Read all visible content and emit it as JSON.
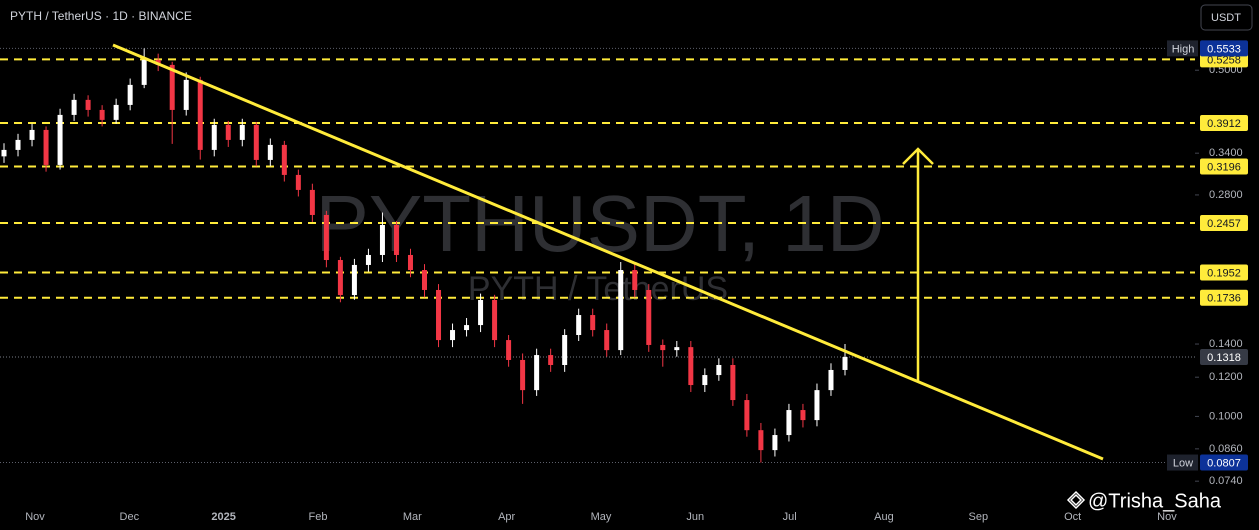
{
  "header": "PYTH / TetherUS · 1D · BINANCE",
  "currency_button": "USDT",
  "watermark": {
    "symbol": "PYTHUSDT, 1D",
    "name": "PYTH / TetherUS"
  },
  "author": "@Trisha_Saha",
  "chart_data": {
    "type": "candlestick",
    "log_scale": true,
    "up_color": "#ffffff",
    "down_color": "#f23645",
    "level_color": "#ffeb3b",
    "ylim": [
      0.0678,
      0.693
    ],
    "yticks": [
      {
        "value": 0.5,
        "label": "0.5000"
      },
      {
        "value": 0.34,
        "label": "0.3400"
      },
      {
        "value": 0.28,
        "label": "0.2800"
      },
      {
        "value": 0.14,
        "label": "0.1400"
      },
      {
        "value": 0.12,
        "label": "0.1200"
      },
      {
        "value": 0.1,
        "label": "0.1000"
      },
      {
        "value": 0.086,
        "label": "0.0860"
      },
      {
        "value": 0.074,
        "label": "0.0740"
      }
    ],
    "x_labels": [
      "Nov",
      "Dec",
      "2025",
      "Feb",
      "Mar",
      "Apr",
      "May",
      "Jun",
      "Jul",
      "Aug",
      "Sep",
      "Oct",
      "Nov"
    ],
    "levels": [
      0.5258,
      0.3912,
      0.3196,
      0.2457,
      0.1952,
      0.1736
    ],
    "session_high": {
      "label": "High",
      "value": 0.5533
    },
    "session_low": {
      "label": "Low",
      "value": 0.0807
    },
    "last": 0.1318,
    "open": [
      0.335,
      0.3452,
      0.3616,
      0.3788,
      0.3219,
      0.4062,
      0.4356,
      0.4157,
      0.3969,
      0.4255,
      0.467,
      0.5246,
      0.5125,
      0.4157,
      0.478,
      0.3452,
      0.3877,
      0.3616,
      0.3877,
      0.3295,
      0.3533,
      0.3073,
      0.2866,
      0.2551,
      0.2069,
      0.1758,
      0.2022,
      0.2118,
      0.2435,
      0.2118,
      0.1975,
      0.18,
      0.1426,
      0.1494,
      0.1529,
      0.1718,
      0.1426,
      0.13,
      0.113,
      0.133,
      0.127,
      0.146,
      0.1602,
      0.1494,
      0.1361,
      0.1975,
      0.18,
      0.1394,
      0.1361,
      0.138,
      0.1157,
      0.1212,
      0.127,
      0.1079,
      0.0938,
      0.0855,
      0.0917,
      0.103,
      0.0983,
      0.113,
      0.1241
    ],
    "high": [
      0.356,
      0.372,
      0.39,
      0.385,
      0.418,
      0.448,
      0.445,
      0.425,
      0.438,
      0.481,
      0.5533,
      0.54,
      0.52,
      0.495,
      0.485,
      0.399,
      0.395,
      0.399,
      0.393,
      0.364,
      0.36,
      0.315,
      0.295,
      0.26,
      0.21,
      0.208,
      0.218,
      0.258,
      0.248,
      0.218,
      0.203,
      0.185,
      0.154,
      0.158,
      0.177,
      0.176,
      0.146,
      0.134,
      0.137,
      0.137,
      0.15,
      0.165,
      0.165,
      0.154,
      0.205,
      0.203,
      0.185,
      0.143,
      0.142,
      0.142,
      0.125,
      0.131,
      0.131,
      0.111,
      0.097,
      0.0945,
      0.106,
      0.106,
      0.1165,
      0.128,
      0.14
    ],
    "low": [
      0.325,
      0.335,
      0.351,
      0.312,
      0.315,
      0.395,
      0.403,
      0.385,
      0.39,
      0.415,
      0.46,
      0.498,
      0.355,
      0.405,
      0.33,
      0.335,
      0.35,
      0.351,
      0.32,
      0.32,
      0.298,
      0.278,
      0.247,
      0.2,
      0.17,
      0.172,
      0.196,
      0.205,
      0.205,
      0.191,
      0.174,
      0.138,
      0.138,
      0.145,
      0.148,
      0.138,
      0.126,
      0.106,
      0.11,
      0.123,
      0.123,
      0.142,
      0.145,
      0.132,
      0.133,
      0.174,
      0.135,
      0.126,
      0.132,
      0.112,
      0.112,
      0.118,
      0.105,
      0.091,
      0.0807,
      0.083,
      0.089,
      0.095,
      0.0955,
      0.11,
      0.121
    ],
    "close": [
      0.3452,
      0.3616,
      0.3788,
      0.3219,
      0.4062,
      0.4356,
      0.4157,
      0.3969,
      0.4255,
      0.467,
      0.5246,
      0.5125,
      0.4157,
      0.478,
      0.3452,
      0.3877,
      0.3616,
      0.3877,
      0.3295,
      0.3533,
      0.3073,
      0.2866,
      0.2551,
      0.2069,
      0.1758,
      0.2022,
      0.2118,
      0.2435,
      0.2118,
      0.1975,
      0.18,
      0.1426,
      0.1494,
      0.1529,
      0.1718,
      0.1426,
      0.13,
      0.113,
      0.133,
      0.127,
      0.146,
      0.1602,
      0.1494,
      0.1361,
      0.1975,
      0.18,
      0.1394,
      0.1361,
      0.138,
      0.1157,
      0.1212,
      0.127,
      0.1079,
      0.0938,
      0.0855,
      0.0917,
      0.103,
      0.0983,
      0.113,
      0.1241,
      0.1318
    ]
  }
}
